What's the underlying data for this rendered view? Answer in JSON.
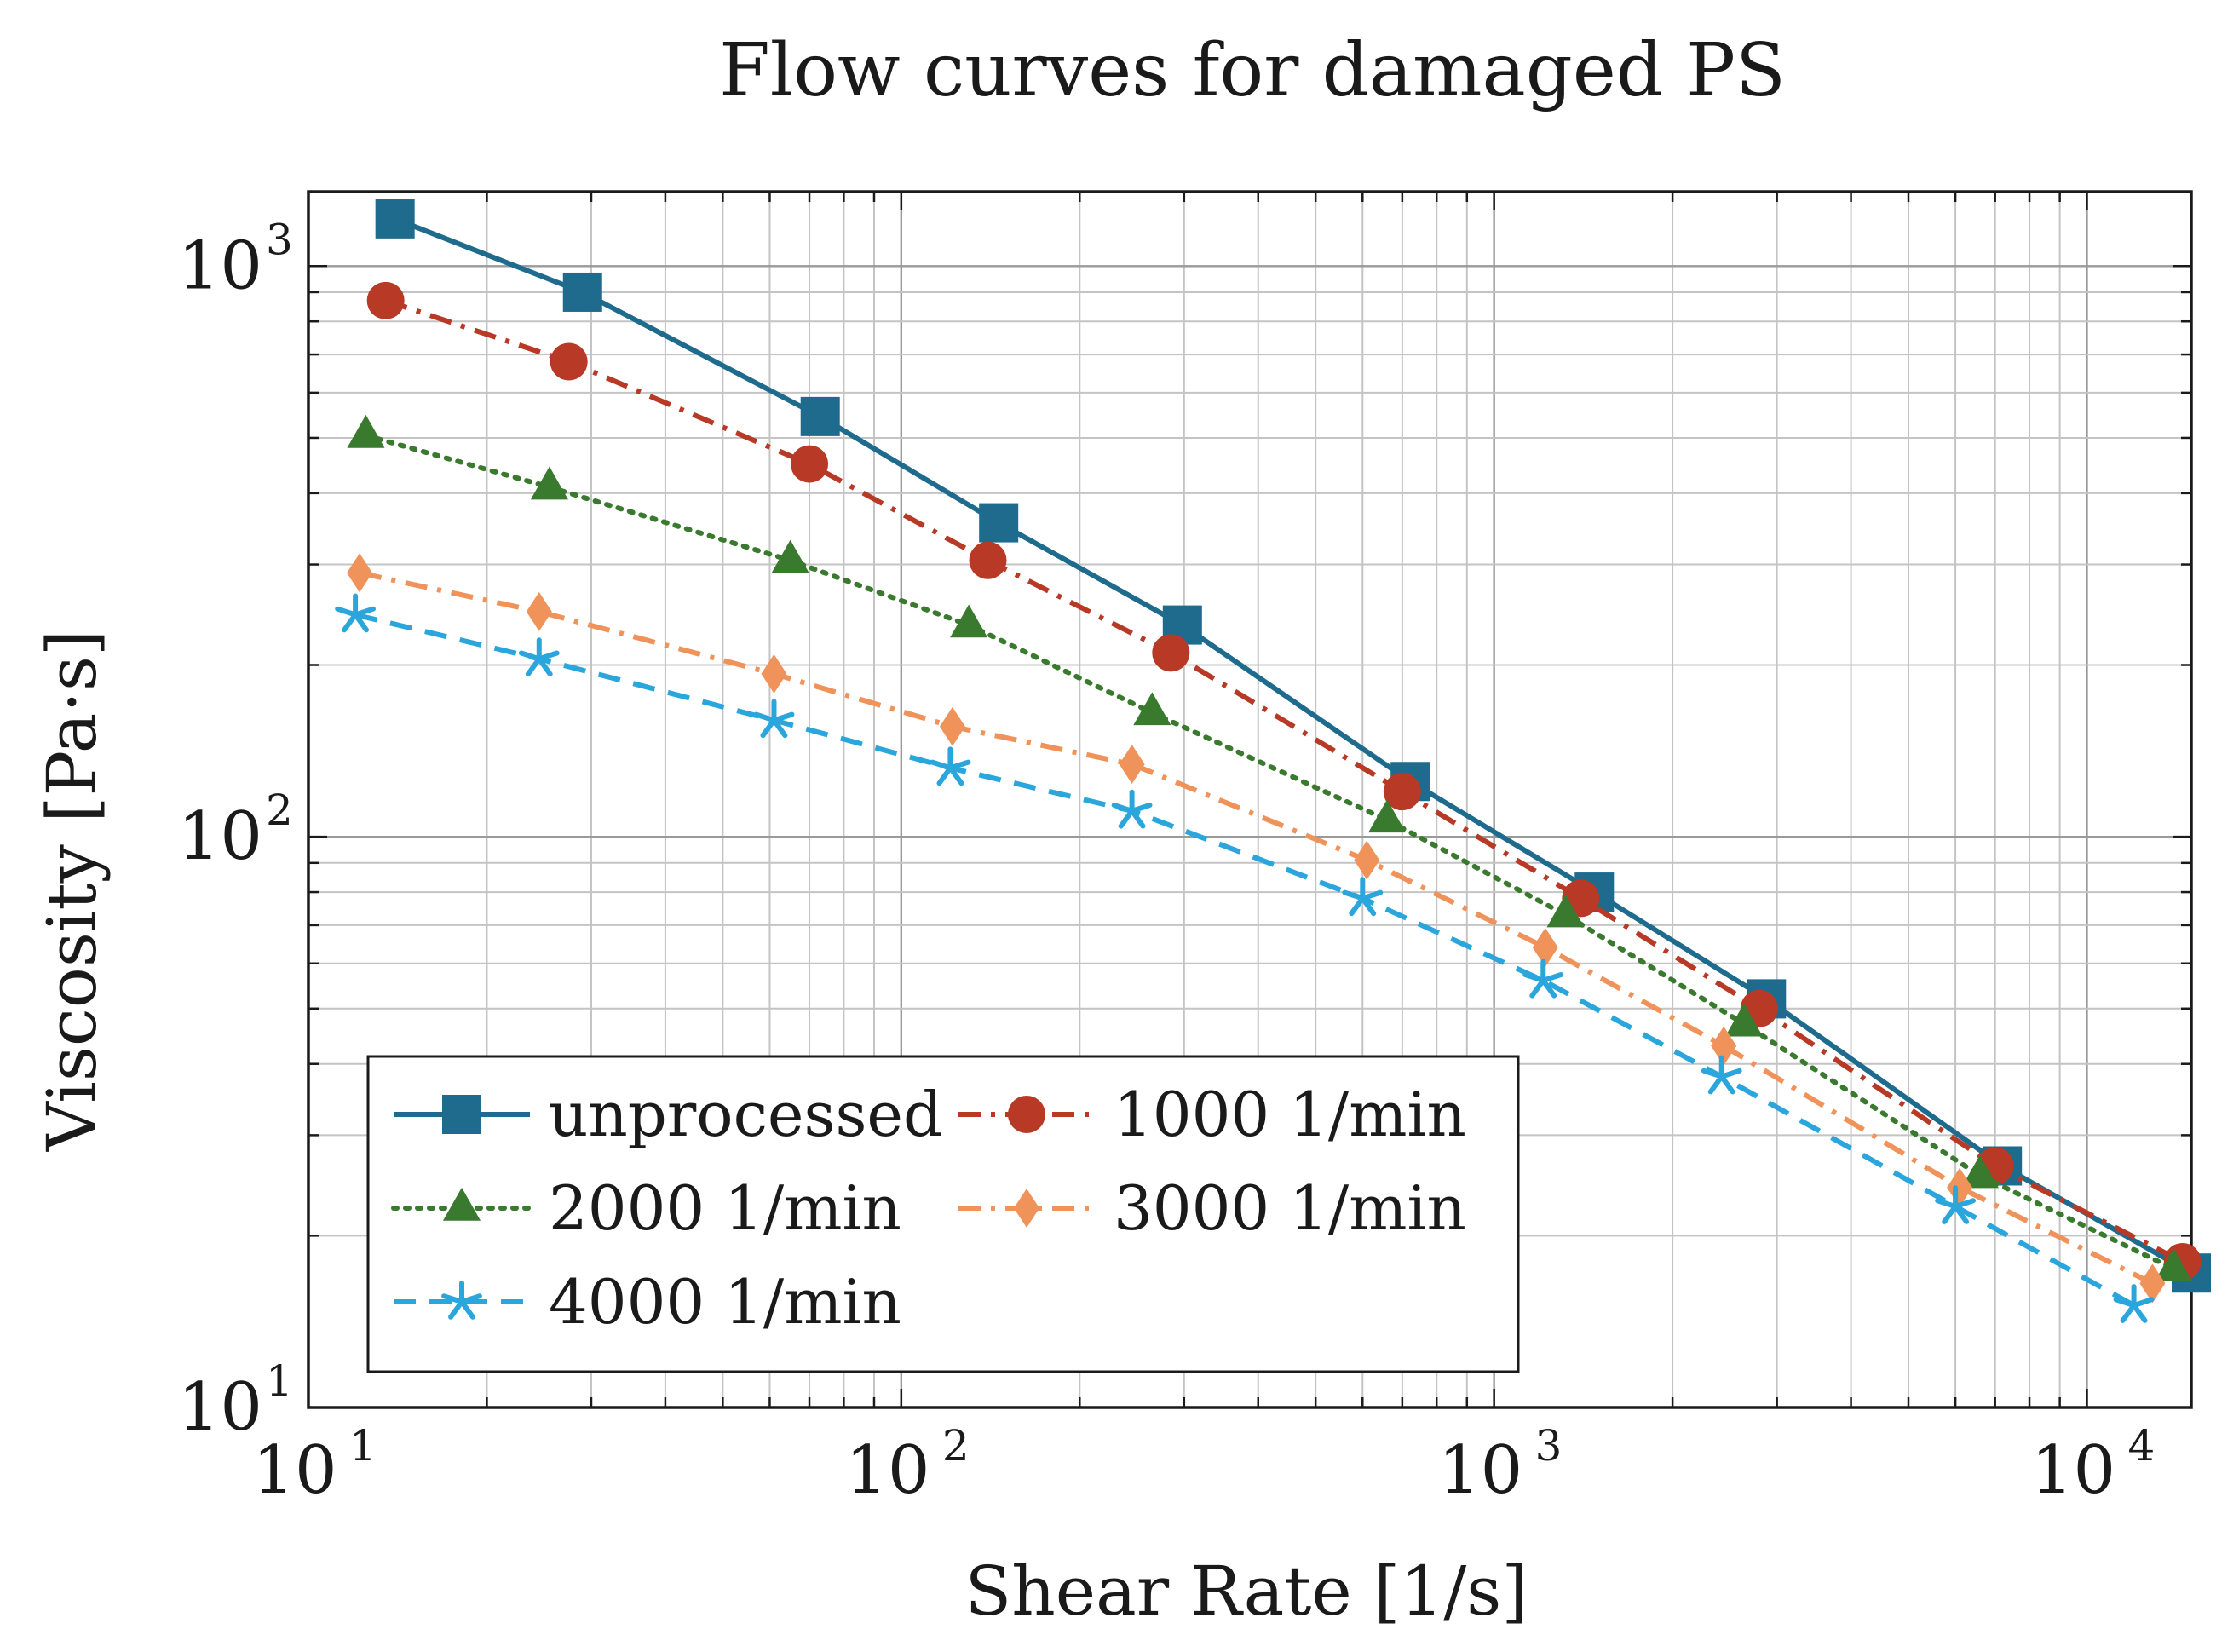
{
  "chart_data": {
    "type": "line",
    "title": "Flow curves for damaged PS",
    "xlabel": "Shear Rate [1/s]",
    "ylabel": "Viscosity [Pa·s]",
    "xscale": "log",
    "yscale": "log",
    "xlim": [
      10,
      15000
    ],
    "ylim": [
      10,
      1350
    ],
    "grid": true,
    "legend_position": "bottom-left",
    "x_ticks": [
      {
        "value": 10,
        "base": "10",
        "exp": "1"
      },
      {
        "value": 100,
        "base": "10",
        "exp": "2"
      },
      {
        "value": 1000,
        "base": "10",
        "exp": "3"
      },
      {
        "value": 10000,
        "base": "10",
        "exp": "4"
      }
    ],
    "y_ticks": [
      {
        "value": 10,
        "base": "10",
        "exp": "1"
      },
      {
        "value": 100,
        "base": "10",
        "exp": "2"
      },
      {
        "value": 1000,
        "base": "10",
        "exp": "3"
      }
    ],
    "series": [
      {
        "name": "unprocessed",
        "color": "#1f6b8e",
        "dash": "solid",
        "marker": "square",
        "x": [
          14,
          29,
          73,
          146,
          298,
          722,
          1476,
          2880,
          7200,
          15000
        ],
        "y": [
          1210,
          900,
          545,
          355,
          235,
          125,
          80,
          52,
          26.5,
          17.2
        ]
      },
      {
        "name": "1000 1/min",
        "color": "#b83a26",
        "dash": "dashdot",
        "marker": "circle",
        "x": [
          13.5,
          27.5,
          70,
          140,
          285,
          700,
          1400,
          2800,
          7000,
          14500
        ],
        "y": [
          870,
          680,
          450,
          305,
          210,
          120,
          78,
          50,
          26.5,
          18
        ]
      },
      {
        "name": "2000 1/min",
        "color": "#3a7a2e",
        "dash": "dotted",
        "marker": "triangle",
        "x": [
          12.5,
          25.5,
          65,
          130,
          265,
          660,
          1320,
          2640,
          6600,
          14000
        ],
        "y": [
          505,
          410,
          305,
          235,
          165,
          107,
          73,
          47,
          25.5,
          17.5
        ]
      },
      {
        "name": "3000 1/min",
        "color": "#f0935a",
        "dash": "dashdot",
        "marker": "diamond",
        "x": [
          12.2,
          24.5,
          61,
          122,
          245,
          610,
          1220,
          2440,
          6100,
          12900
        ],
        "y": [
          290,
          248,
          193,
          156,
          134,
          91,
          64,
          43,
          24.3,
          16.5
        ]
      },
      {
        "name": "4000 1/min",
        "color": "#2aa6dc",
        "dash": "dashed",
        "marker": "star",
        "x": [
          12,
          24.5,
          61,
          121,
          245,
          600,
          1210,
          2420,
          6000,
          12000
        ],
        "y": [
          245,
          205,
          160,
          132,
          111,
          78,
          56,
          38,
          22.5,
          15.1
        ]
      }
    ]
  }
}
